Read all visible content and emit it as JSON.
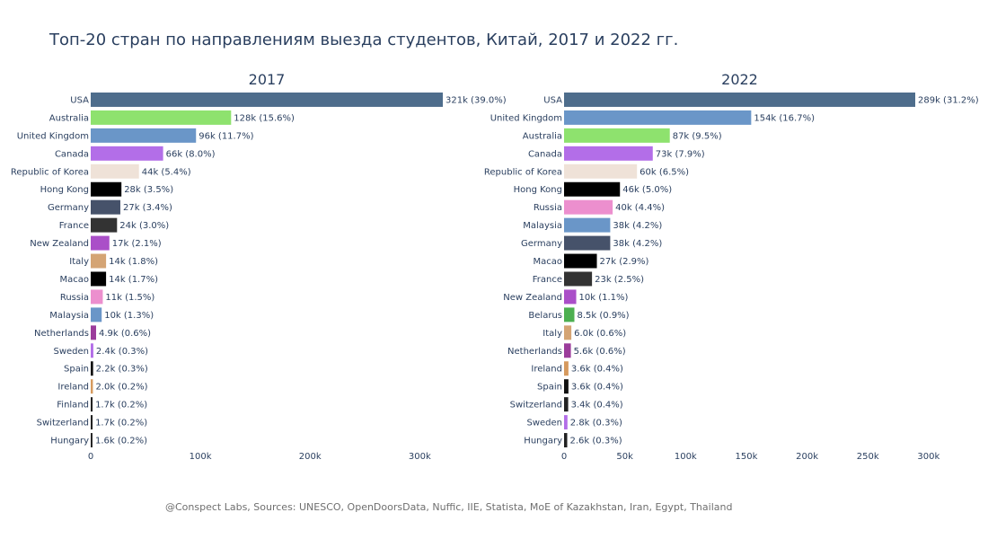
{
  "title": "Топ-20 стран по направлениям выезда студентов, Китай, 2017 и 2022 гг.",
  "footer": "@Conspect Labs, Sources: UNESCO, OpenDoorsData, Nuffic, IIE, Statista, MoE of Kazakhstan, Iran, Egypt, Thailand",
  "chart_data": [
    {
      "type": "bar",
      "orientation": "horizontal",
      "title": "2017",
      "xlim": [
        0,
        321000
      ],
      "xticks": [
        0,
        100000,
        200000,
        300000
      ],
      "xtick_labels": [
        "0",
        "100k",
        "200k",
        "300k"
      ],
      "categories": [
        "USA",
        "Australia",
        "United Kingdom",
        "Canada",
        "Republic of Korea",
        "Hong Kong",
        "Germany",
        "France",
        "New Zealand",
        "Italy",
        "Macao",
        "Russia",
        "Malaysia",
        "Netherlands",
        "Sweden",
        "Spain",
        "Ireland",
        "Finland",
        "Switzerland",
        "Hungary"
      ],
      "values": [
        321000,
        128000,
        96000,
        66000,
        44000,
        28000,
        27000,
        24000,
        17000,
        14000,
        14000,
        11000,
        10000,
        4900,
        2400,
        2200,
        2000,
        1700,
        1700,
        1600
      ],
      "labels": [
        "321k (39.0%)",
        "128k (15.6%)",
        "96k (11.7%)",
        "66k (8.0%)",
        "44k (5.4%)",
        "28k (3.5%)",
        "27k (3.4%)",
        "24k (3.0%)",
        "17k (2.1%)",
        "14k (1.8%)",
        "14k (1.7%)",
        "11k (1.5%)",
        "10k (1.3%)",
        "4.9k (0.6%)",
        "2.4k (0.3%)",
        "2.2k (0.3%)",
        "2.0k (0.2%)",
        "1.7k (0.2%)",
        "1.7k (0.2%)",
        "1.6k (0.2%)"
      ],
      "colors": [
        "#4e6d8c",
        "#8ee26e",
        "#6a96c8",
        "#b36ee8",
        "#efe2d8",
        "#000000",
        "#46526a",
        "#333333",
        "#aa4fc8",
        "#d4a474",
        "#000000",
        "#ec8fce",
        "#6a96c8",
        "#9b3c9b",
        "#b36ee8",
        "#111111",
        "#d69a5e",
        "#222222",
        "#222222",
        "#222222"
      ]
    },
    {
      "type": "bar",
      "orientation": "horizontal",
      "title": "2022",
      "xlim": [
        0,
        289000
      ],
      "xticks": [
        0,
        50000,
        100000,
        150000,
        200000,
        250000,
        300000
      ],
      "xtick_labels": [
        "0",
        "50k",
        "100k",
        "150k",
        "200k",
        "250k",
        "300k"
      ],
      "categories": [
        "USA",
        "United Kingdom",
        "Australia",
        "Canada",
        "Republic of Korea",
        "Hong Kong",
        "Russia",
        "Malaysia",
        "Germany",
        "Macao",
        "France",
        "New Zealand",
        "Belarus",
        "Italy",
        "Netherlands",
        "Ireland",
        "Spain",
        "Switzerland",
        "Sweden",
        "Hungary"
      ],
      "values": [
        289000,
        154000,
        87000,
        73000,
        60000,
        46000,
        40000,
        38000,
        38000,
        27000,
        23000,
        10000,
        8500,
        6000,
        5600,
        3600,
        3600,
        3400,
        2800,
        2600
      ],
      "labels": [
        "289k (31.2%)",
        "154k (16.7%)",
        "87k (9.5%)",
        "73k (7.9%)",
        "60k (6.5%)",
        "46k (5.0%)",
        "40k (4.4%)",
        "38k (4.2%)",
        "38k (4.2%)",
        "27k (2.9%)",
        "23k (2.5%)",
        "10k (1.1%)",
        "8.5k (0.9%)",
        "6.0k (0.6%)",
        "5.6k (0.6%)",
        "3.6k (0.4%)",
        "3.6k (0.4%)",
        "3.4k (0.4%)",
        "2.8k (0.3%)",
        "2.6k (0.3%)"
      ],
      "colors": [
        "#4e6d8c",
        "#6a96c8",
        "#8ee26e",
        "#b36ee8",
        "#efe2d8",
        "#000000",
        "#ec8fce",
        "#6a96c8",
        "#46526a",
        "#000000",
        "#333333",
        "#aa4fc8",
        "#4caf50",
        "#d4a474",
        "#9b3c9b",
        "#d69a5e",
        "#111111",
        "#222222",
        "#b36ee8",
        "#222222"
      ]
    }
  ]
}
